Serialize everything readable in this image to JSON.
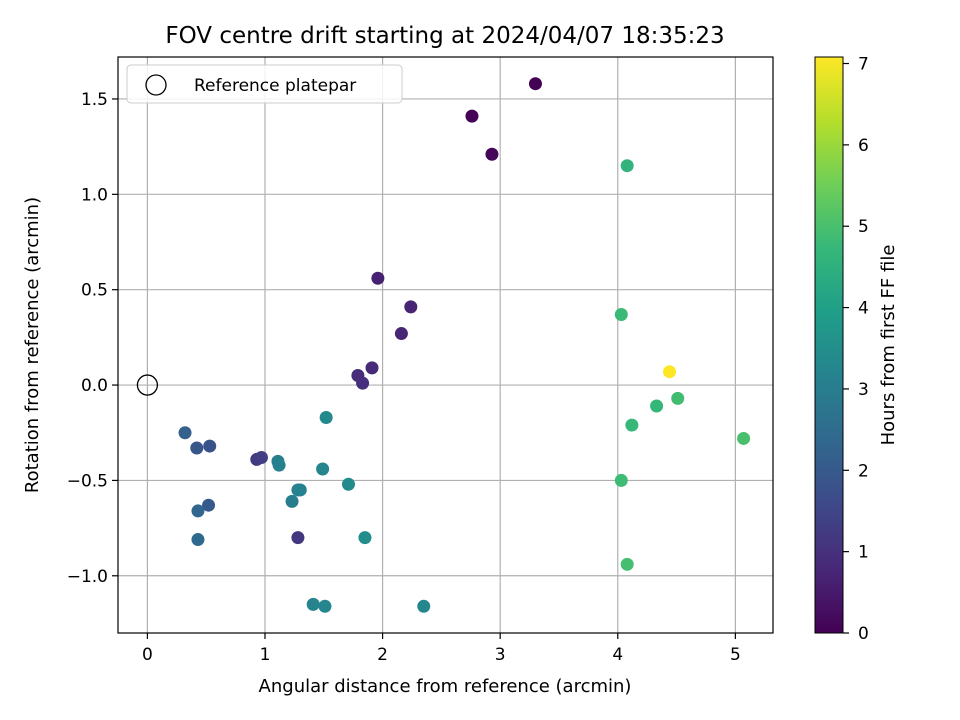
{
  "chart_data": {
    "type": "scatter",
    "title": "FOV centre drift starting at 2024/04/07 18:35:23",
    "xlabel": "Angular distance from reference (arcmin)",
    "ylabel": "Rotation from reference (arcmin)",
    "xlim": [
      -0.25,
      5.32
    ],
    "ylim": [
      -1.3,
      1.72
    ],
    "xticks": [
      0,
      1,
      2,
      3,
      4,
      5
    ],
    "xtick_labels": [
      "0",
      "1",
      "2",
      "3",
      "4",
      "5"
    ],
    "yticks": [
      -1.0,
      -0.5,
      0.0,
      0.5,
      1.0,
      1.5
    ],
    "ytick_labels": [
      "−1.0",
      "−0.5",
      "0.0",
      "0.5",
      "1.0",
      "1.5"
    ],
    "grid": true,
    "legend": {
      "placement": "top-left",
      "entries": [
        "Reference platepar"
      ]
    },
    "reference_point": {
      "x": 0,
      "y": 0
    },
    "colorbar": {
      "label": "Hours from first FF file",
      "range": [
        0,
        7.08
      ],
      "ticks": [
        0,
        1,
        2,
        3,
        4,
        5,
        6,
        7
      ],
      "tick_labels": [
        "0",
        "1",
        "2",
        "3",
        "4",
        "5",
        "6",
        "7"
      ],
      "colormap": [
        "#440154",
        "#482878",
        "#3e4989",
        "#31688e",
        "#26828e",
        "#1f9e89",
        "#35b779",
        "#6ece58",
        "#b5de2b",
        "#fde725"
      ]
    },
    "points": [
      {
        "x": 3.3,
        "y": 1.58,
        "c": 0.0
      },
      {
        "x": 2.76,
        "y": 1.41,
        "c": 0.05
      },
      {
        "x": 2.93,
        "y": 1.21,
        "c": 0.1
      },
      {
        "x": 1.96,
        "y": 0.56,
        "c": 0.65
      },
      {
        "x": 2.24,
        "y": 0.41,
        "c": 0.7
      },
      {
        "x": 2.16,
        "y": 0.27,
        "c": 0.75
      },
      {
        "x": 1.91,
        "y": 0.09,
        "c": 0.85
      },
      {
        "x": 1.79,
        "y": 0.05,
        "c": 0.9
      },
      {
        "x": 1.83,
        "y": 0.01,
        "c": 0.95
      },
      {
        "x": 0.93,
        "y": -0.39,
        "c": 1.25
      },
      {
        "x": 0.97,
        "y": -0.38,
        "c": 1.3
      },
      {
        "x": 1.28,
        "y": -0.8,
        "c": 1.15
      },
      {
        "x": 0.53,
        "y": -0.32,
        "c": 1.8
      },
      {
        "x": 0.42,
        "y": -0.33,
        "c": 1.9
      },
      {
        "x": 0.52,
        "y": -0.63,
        "c": 2.0
      },
      {
        "x": 0.32,
        "y": -0.25,
        "c": 2.2
      },
      {
        "x": 0.43,
        "y": -0.66,
        "c": 2.3
      },
      {
        "x": 0.43,
        "y": -0.81,
        "c": 2.4
      },
      {
        "x": 1.11,
        "y": -0.4,
        "c": 3.05
      },
      {
        "x": 1.12,
        "y": -0.42,
        "c": 3.1
      },
      {
        "x": 1.23,
        "y": -0.61,
        "c": 3.0
      },
      {
        "x": 1.28,
        "y": -0.55,
        "c": 3.1
      },
      {
        "x": 1.3,
        "y": -0.55,
        "c": 3.15
      },
      {
        "x": 1.49,
        "y": -0.44,
        "c": 3.25
      },
      {
        "x": 1.52,
        "y": -0.17,
        "c": 3.35
      },
      {
        "x": 1.71,
        "y": -0.52,
        "c": 3.4
      },
      {
        "x": 1.85,
        "y": -0.8,
        "c": 3.45
      },
      {
        "x": 1.41,
        "y": -1.15,
        "c": 3.2
      },
      {
        "x": 1.51,
        "y": -1.16,
        "c": 3.25
      },
      {
        "x": 2.35,
        "y": -1.16,
        "c": 3.3
      },
      {
        "x": 4.08,
        "y": 1.15,
        "c": 4.6
      },
      {
        "x": 4.03,
        "y": 0.37,
        "c": 4.8
      },
      {
        "x": 4.33,
        "y": -0.11,
        "c": 4.7
      },
      {
        "x": 4.12,
        "y": -0.21,
        "c": 4.75
      },
      {
        "x": 4.51,
        "y": -0.07,
        "c": 4.9
      },
      {
        "x": 4.03,
        "y": -0.5,
        "c": 4.85
      },
      {
        "x": 4.08,
        "y": -0.94,
        "c": 4.95
      },
      {
        "x": 5.07,
        "y": -0.28,
        "c": 5.0
      },
      {
        "x": 4.44,
        "y": 0.07,
        "c": 7.08
      }
    ]
  }
}
